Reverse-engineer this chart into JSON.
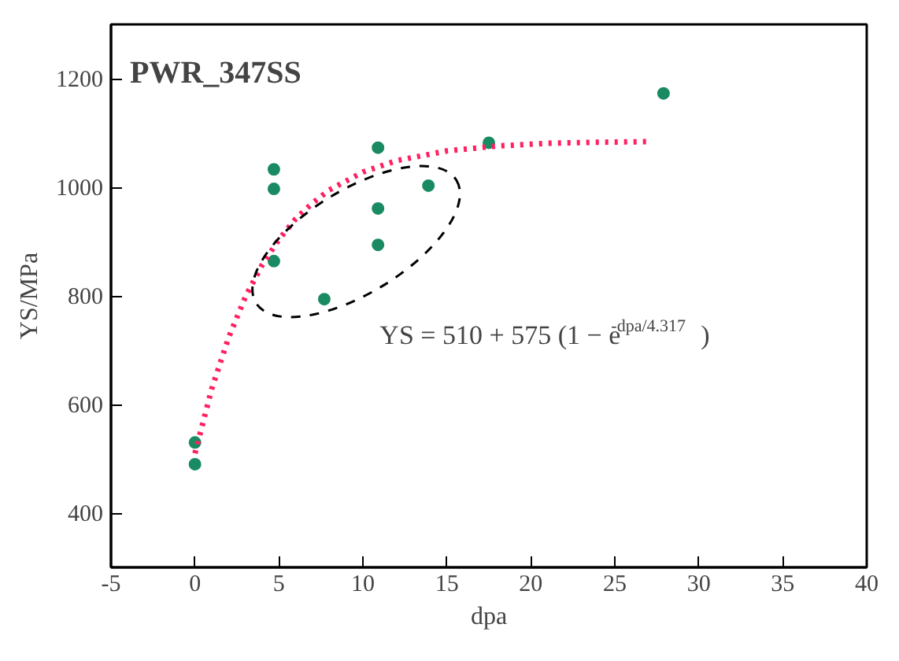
{
  "chart_data": {
    "type": "scatter",
    "title": "PWR_347SS",
    "xlabel": "dpa",
    "ylabel": "YS/MPa",
    "xlim": [
      -5,
      40
    ],
    "xticks": [
      -5,
      0,
      5,
      10,
      15,
      20,
      25,
      30,
      35,
      40
    ],
    "ylim": [
      300,
      1300
    ],
    "yticks": [
      400,
      600,
      800,
      1000,
      1200
    ],
    "grid": false,
    "annotations": [
      "YS = 510 + 575 (1 − e$^{-dpa/4.317}$)"
    ],
    "series": [
      {
        "marker": "circle",
        "color": "#1a8a62",
        "x": [
          0,
          0,
          4.7,
          4.7,
          4.7,
          7.7,
          10.9,
          10.9,
          10.9,
          13.9,
          17.5,
          27.9
        ],
        "values": [
          530,
          490,
          1033,
          997,
          864,
          794,
          1073,
          961,
          894,
          1003,
          1082,
          1173
        ]
      },
      {
        "type": "line",
        "color": "#ff2060",
        "line_style": "dotted",
        "x": [
          0,
          1,
          2,
          3,
          4,
          5,
          6,
          7,
          8,
          10,
          12,
          15,
          18,
          21,
          24,
          27
        ],
        "values": [
          510,
          629,
          723,
          798,
          857,
          904,
          942,
          971,
          995,
          1028,
          1049,
          1067,
          1076,
          1081,
          1083,
          1084
        ]
      }
    ]
  }
}
